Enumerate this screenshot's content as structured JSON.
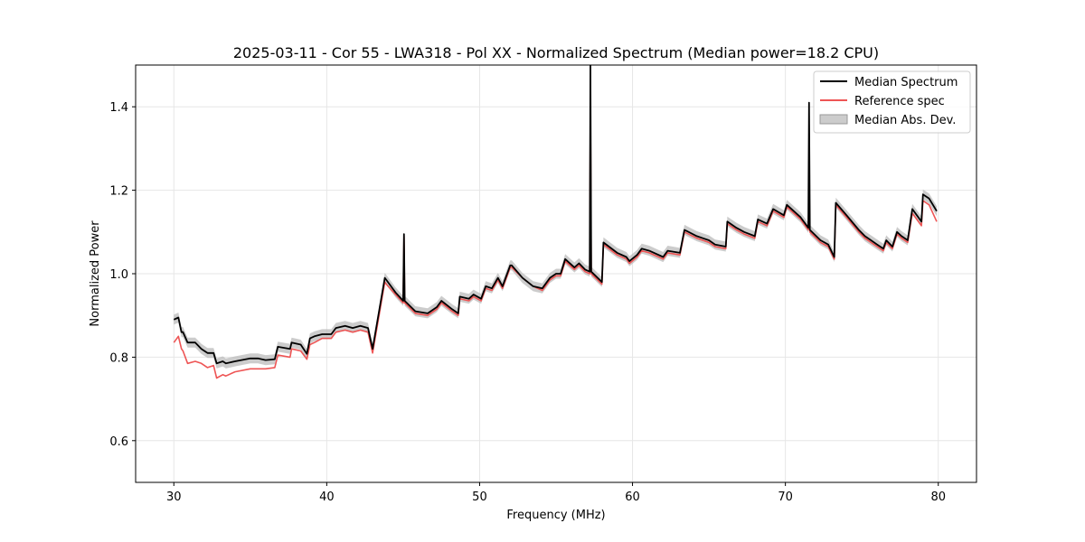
{
  "chart_data": {
    "type": "line",
    "title": "2025-03-11 - Cor 55 - LWA318 - Pol XX - Normalized Spectrum (Median power=18.2 CPU)",
    "xlabel": "Frequency (MHz)",
    "ylabel": "Normalized Power",
    "xlim": [
      27.5,
      82.5
    ],
    "ylim": [
      0.5,
      1.5
    ],
    "xticks": [
      30,
      40,
      50,
      60,
      70,
      80
    ],
    "yticks": [
      0.6,
      0.8,
      1.0,
      1.2,
      1.4
    ],
    "grid": true,
    "legend_position": "top-right",
    "legend": [
      {
        "label": "Median Spectrum",
        "kind": "line",
        "color": "#000000"
      },
      {
        "label": "Reference spec",
        "kind": "line",
        "color": "#ee5555"
      },
      {
        "label": "Median Abs. Dev.",
        "kind": "band",
        "color": "#bbbbbb"
      }
    ],
    "series": [
      {
        "name": "Median Spectrum",
        "color": "#000000",
        "x": [
          30.0,
          30.3,
          30.5,
          30.6,
          30.9,
          31.4,
          31.8,
          32.2,
          32.6,
          32.8,
          33.2,
          33.4,
          34.0,
          35.0,
          35.5,
          36.0,
          36.6,
          36.8,
          37.6,
          37.7,
          38.3,
          38.7,
          38.9,
          39.2,
          39.7,
          40.3,
          40.6,
          41.2,
          41.7,
          42.2,
          42.7,
          43.0,
          43.8,
          43.9,
          44.5,
          45.0,
          45.05,
          45.1,
          45.8,
          46.6,
          47.2,
          47.5,
          48.2,
          48.6,
          48.7,
          49.3,
          49.6,
          50.1,
          50.4,
          50.8,
          51.2,
          51.5,
          52.0,
          52.1,
          52.8,
          53.5,
          54.1,
          54.6,
          55.0,
          55.3,
          55.6,
          56.2,
          56.5,
          56.9,
          57.2,
          57.25,
          57.3,
          58.0,
          58.1,
          59.0,
          59.6,
          59.8,
          60.3,
          60.6,
          61.1,
          62.0,
          62.3,
          63.1,
          63.4,
          64.2,
          64.6,
          65.0,
          65.4,
          66.1,
          66.2,
          66.8,
          67.3,
          68.0,
          68.2,
          68.8,
          69.2,
          69.9,
          70.1,
          71.0,
          71.5,
          71.55,
          71.6,
          72.3,
          72.8,
          73.2,
          73.3,
          74.0,
          74.8,
          75.2,
          75.6,
          76.0,
          76.4,
          76.6,
          77.0,
          77.3,
          77.6,
          78.0,
          78.3,
          78.9,
          79.0,
          79.4,
          79.9
        ],
        "y": [
          0.89,
          0.895,
          0.86,
          0.86,
          0.835,
          0.835,
          0.82,
          0.81,
          0.81,
          0.785,
          0.79,
          0.785,
          0.79,
          0.797,
          0.797,
          0.793,
          0.795,
          0.825,
          0.82,
          0.835,
          0.83,
          0.808,
          0.845,
          0.85,
          0.855,
          0.855,
          0.87,
          0.875,
          0.87,
          0.875,
          0.87,
          0.82,
          0.99,
          0.985,
          0.955,
          0.935,
          1.095,
          0.935,
          0.91,
          0.905,
          0.92,
          0.935,
          0.915,
          0.905,
          0.945,
          0.94,
          0.95,
          0.94,
          0.97,
          0.965,
          0.99,
          0.97,
          1.02,
          1.02,
          0.99,
          0.97,
          0.965,
          0.99,
          1.0,
          1.0,
          1.035,
          1.015,
          1.025,
          1.01,
          1.005,
          1.5,
          1.005,
          0.98,
          1.075,
          1.05,
          1.04,
          1.03,
          1.045,
          1.06,
          1.055,
          1.04,
          1.055,
          1.05,
          1.105,
          1.09,
          1.085,
          1.08,
          1.07,
          1.065,
          1.125,
          1.11,
          1.1,
          1.09,
          1.13,
          1.12,
          1.155,
          1.14,
          1.165,
          1.135,
          1.11,
          1.41,
          1.105,
          1.08,
          1.07,
          1.04,
          1.17,
          1.14,
          1.105,
          1.09,
          1.08,
          1.07,
          1.06,
          1.08,
          1.065,
          1.1,
          1.09,
          1.08,
          1.155,
          1.125,
          1.19,
          1.18,
          1.15
        ]
      },
      {
        "name": "Reference spec",
        "color": "#ee5555",
        "x": [
          30.0,
          30.3,
          30.5,
          30.6,
          30.9,
          31.4,
          31.8,
          32.2,
          32.6,
          32.8,
          33.2,
          33.4,
          34.0,
          35.0,
          35.5,
          36.0,
          36.6,
          36.8,
          37.6,
          37.7,
          38.3,
          38.7,
          38.9,
          39.2,
          39.7,
          40.3,
          40.6,
          41.2,
          41.7,
          42.2,
          42.7,
          43.0,
          43.8,
          43.9,
          44.5,
          45.0,
          45.05,
          45.1,
          45.8,
          46.6,
          47.2,
          47.5,
          48.2,
          48.6,
          48.7,
          49.3,
          49.6,
          50.1,
          50.4,
          50.8,
          51.2,
          51.5,
          52.0,
          52.1,
          52.8,
          53.5,
          54.1,
          54.6,
          55.0,
          55.3,
          55.6,
          56.2,
          56.5,
          56.9,
          57.2,
          57.25,
          57.3,
          58.0,
          58.1,
          59.0,
          59.6,
          59.8,
          60.3,
          60.6,
          61.1,
          62.0,
          62.3,
          63.1,
          63.4,
          64.2,
          64.6,
          65.0,
          65.4,
          66.1,
          66.2,
          66.8,
          67.3,
          68.0,
          68.2,
          68.8,
          69.2,
          69.9,
          70.1,
          71.0,
          71.5,
          71.55,
          71.6,
          72.3,
          72.8,
          73.2,
          73.3,
          74.0,
          74.8,
          75.2,
          75.6,
          76.0,
          76.4,
          76.6,
          77.0,
          77.3,
          77.6,
          78.0,
          78.3,
          78.9,
          79.0,
          79.4,
          79.9
        ],
        "y": [
          0.835,
          0.85,
          0.82,
          0.815,
          0.785,
          0.79,
          0.785,
          0.775,
          0.78,
          0.75,
          0.758,
          0.755,
          0.765,
          0.772,
          0.772,
          0.772,
          0.775,
          0.805,
          0.8,
          0.82,
          0.815,
          0.795,
          0.83,
          0.835,
          0.845,
          0.845,
          0.86,
          0.865,
          0.86,
          0.865,
          0.86,
          0.81,
          0.98,
          0.975,
          0.95,
          0.93,
          1.09,
          0.93,
          0.905,
          0.9,
          0.915,
          0.93,
          0.91,
          0.9,
          0.94,
          0.935,
          0.945,
          0.935,
          0.965,
          0.96,
          0.985,
          0.965,
          1.015,
          1.015,
          0.99,
          0.97,
          0.96,
          0.985,
          0.995,
          0.995,
          1.03,
          1.01,
          1.02,
          1.005,
          1.0,
          1.41,
          1.0,
          0.975,
          1.07,
          1.045,
          1.035,
          1.025,
          1.04,
          1.055,
          1.05,
          1.035,
          1.05,
          1.045,
          1.1,
          1.085,
          1.08,
          1.075,
          1.065,
          1.06,
          1.12,
          1.105,
          1.095,
          1.085,
          1.125,
          1.115,
          1.15,
          1.135,
          1.16,
          1.13,
          1.105,
          1.22,
          1.1,
          1.075,
          1.065,
          1.035,
          1.165,
          1.135,
          1.1,
          1.085,
          1.075,
          1.065,
          1.055,
          1.075,
          1.06,
          1.095,
          1.085,
          1.075,
          1.145,
          1.115,
          1.175,
          1.165,
          1.125
        ]
      }
    ],
    "band": {
      "name": "Median Abs. Dev.",
      "color": "#bbbbbb",
      "half_width": 0.012
    }
  }
}
